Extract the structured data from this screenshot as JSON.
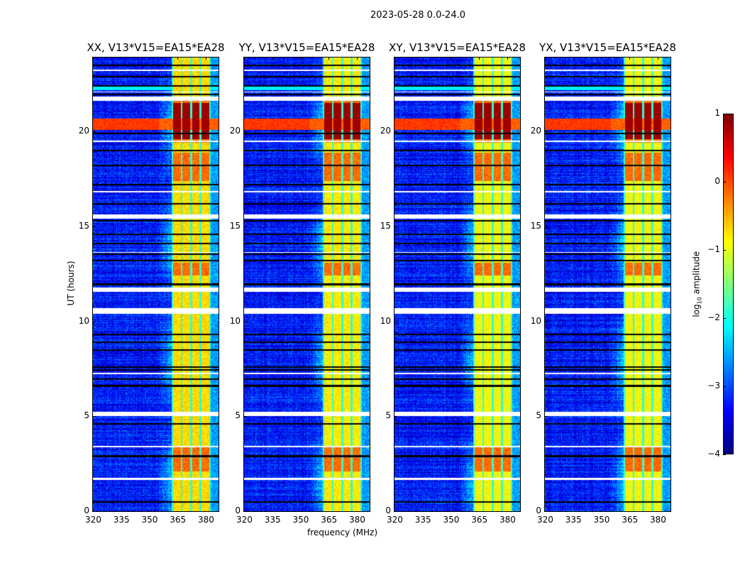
{
  "chart_data": {
    "type": "heatmap",
    "title": "2023-05-28 0.0-24.0",
    "xlabel": "frequency (MHz)",
    "ylabel": "UT (hours)",
    "xlim": [
      320,
      386.8
    ],
    "ylim": [
      0,
      23.9
    ],
    "xticks": [
      "320",
      "335",
      "350",
      "365",
      "380"
    ],
    "xtick_values": [
      320,
      335,
      350,
      365,
      380
    ],
    "yticks": [
      "0",
      "5",
      "10",
      "15",
      "20"
    ],
    "ytick_values": [
      0,
      5,
      10,
      15,
      20
    ],
    "panels": [
      {
        "title": "XX, V13*V15=EA15*EA28",
        "seed": 11,
        "rfi_level": -0.7
      },
      {
        "title": "YY, V13*V15=EA15*EA28",
        "seed": 23,
        "rfi_level": -0.8
      },
      {
        "title": "XY, V13*V15=EA15*EA28",
        "seed": 37,
        "rfi_level": -0.9
      },
      {
        "title": "YX, V13*V15=EA15*EA28",
        "seed": 51,
        "rfi_level": -0.9
      }
    ],
    "features": {
      "rfi_band_mhz": [
        362,
        382.5
      ],
      "subband_edges_mhz": [
        362.3,
        367.2,
        372.2,
        377.2,
        382.3
      ],
      "strong_rfi_hours": [
        [
          2.1,
          3.4
        ],
        [
          12.4,
          13.1
        ],
        [
          17.4,
          18.9
        ],
        [
          19.4,
          21.6
        ]
      ],
      "saturated_rfi_hours": [
        [
          19.6,
          21.5
        ]
      ],
      "broadband_event_hours": [
        20.1,
        20.7
      ],
      "flagged_hours": [
        [
          1.65,
          1.75
        ],
        [
          3.38,
          3.45
        ],
        [
          5.02,
          5.22
        ],
        [
          7.2,
          7.28
        ],
        [
          10.4,
          10.68
        ],
        [
          11.55,
          11.78
        ],
        [
          13.6,
          13.66
        ],
        [
          15.42,
          15.62
        ],
        [
          16.8,
          16.85
        ],
        [
          19.45,
          19.52
        ],
        [
          21.62,
          21.85
        ],
        [
          22.05,
          22.12
        ],
        [
          23.2,
          23.25
        ]
      ],
      "gap_hours": [
        0.5,
        2.9,
        4.6,
        6.6,
        6.95,
        7.45,
        7.6,
        8.5,
        8.9,
        9.3,
        11.95,
        13.2,
        13.55,
        14.1,
        14.6,
        15.3,
        16.2,
        17.2,
        18.2,
        19.0,
        19.9,
        21.95,
        22.4,
        22.9,
        23.5
      ]
    },
    "colorbar": {
      "label": "log10 amplitude",
      "label_main": "log",
      "label_sub": "10",
      "label_rest": " amplitude",
      "colormap": "jet",
      "range": [
        -4,
        1
      ],
      "ticks": [
        "1",
        "0",
        "−1",
        "−2",
        "−3",
        "−4"
      ],
      "tick_values": [
        1,
        0,
        -1,
        -2,
        -3,
        -4
      ]
    }
  }
}
